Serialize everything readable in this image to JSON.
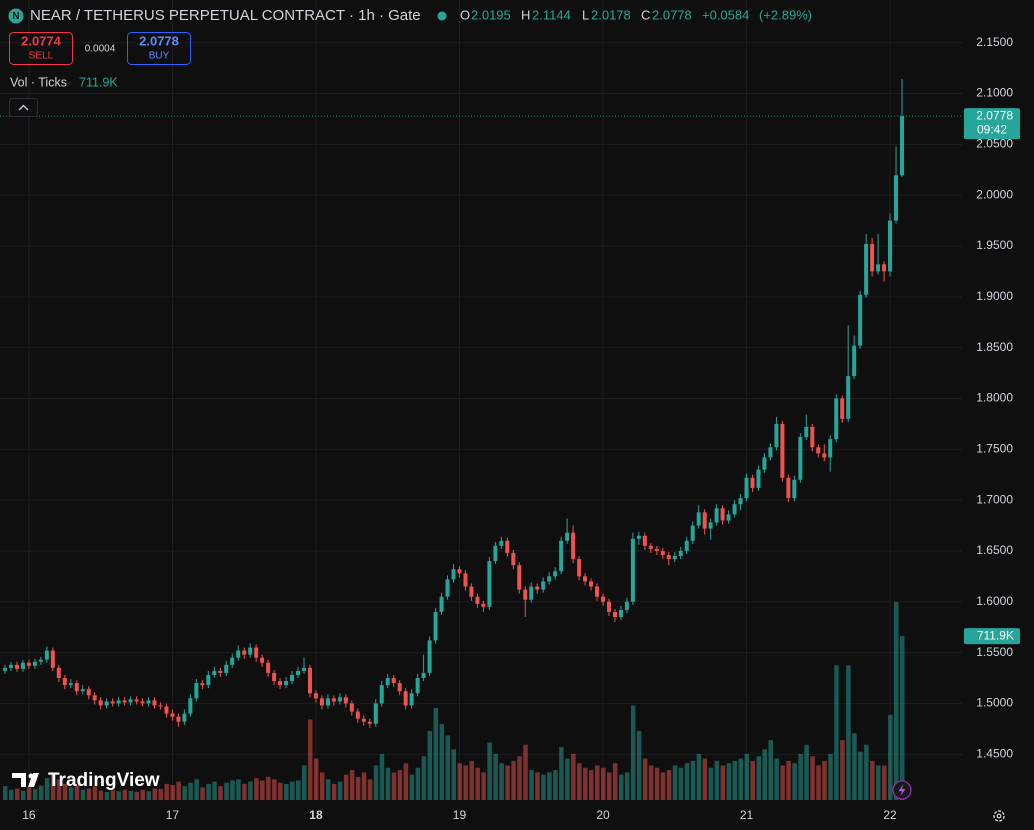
{
  "chart_data": {
    "type": "candlestick",
    "title": "NEAR / TETHERUS PERPETUAL CONTRACT · 1h · Gate",
    "ohlc_labels": [
      "O",
      "H",
      "L",
      "C"
    ],
    "ohlc_values": [
      2.0195,
      2.1144,
      2.0178,
      2.0778
    ],
    "change": {
      "value": 0.0584,
      "label": "+0.0584"
    },
    "change_pct": {
      "value": 2.89,
      "label": "(+2.89%)"
    },
    "sell": {
      "price": 2.0774,
      "label": "SELL"
    },
    "buy": {
      "price": 2.0778,
      "label": "BUY"
    },
    "spread": 0.0004,
    "countdown": "09:42",
    "brand": "TradingView",
    "up_color": "#26a69a",
    "down_color": "#ef5350",
    "grid": true,
    "ylim": [
      1.405,
      2.192
    ],
    "yticks": [
      {
        "value": 1.45,
        "label": "1.4500"
      },
      {
        "value": 1.5,
        "label": "1.5000"
      },
      {
        "value": 1.55,
        "label": "1.5500"
      },
      {
        "value": 1.6,
        "label": "1.6000"
      },
      {
        "value": 1.65,
        "label": "1.6500"
      },
      {
        "value": 1.7,
        "label": "1.7000"
      },
      {
        "value": 1.75,
        "label": "1.7500"
      },
      {
        "value": 1.8,
        "label": "1.8000"
      },
      {
        "value": 1.85,
        "label": "1.8500"
      },
      {
        "value": 1.9,
        "label": "1.9000"
      },
      {
        "value": 1.95,
        "label": "1.9500"
      },
      {
        "value": 2.0,
        "label": "2.0000"
      },
      {
        "value": 2.05,
        "label": "2.0500"
      },
      {
        "value": 2.1,
        "label": "2.1000"
      },
      {
        "value": 2.15,
        "label": "2.1500"
      }
    ],
    "categories": [
      null,
      null,
      null,
      null,
      "16",
      null,
      null,
      null,
      null,
      null,
      null,
      null,
      null,
      null,
      null,
      null,
      null,
      null,
      null,
      null,
      null,
      null,
      null,
      null,
      null,
      null,
      null,
      null,
      "17",
      null,
      null,
      null,
      null,
      null,
      null,
      null,
      null,
      null,
      null,
      null,
      null,
      null,
      null,
      null,
      null,
      null,
      null,
      null,
      null,
      null,
      null,
      null,
      "18",
      null,
      null,
      null,
      null,
      null,
      null,
      null,
      null,
      null,
      null,
      null,
      null,
      null,
      null,
      null,
      null,
      null,
      null,
      null,
      null,
      null,
      null,
      null,
      "19",
      null,
      null,
      null,
      null,
      null,
      null,
      null,
      null,
      null,
      null,
      null,
      null,
      null,
      null,
      null,
      null,
      null,
      null,
      null,
      null,
      null,
      null,
      null,
      "20",
      null,
      null,
      null,
      null,
      null,
      null,
      null,
      null,
      null,
      null,
      null,
      null,
      null,
      null,
      null,
      null,
      null,
      null,
      null,
      null,
      null,
      null,
      null,
      "21",
      null,
      null,
      null,
      null,
      null,
      null,
      null,
      null,
      null,
      null,
      null,
      null,
      null,
      null,
      null,
      null,
      null,
      null,
      null,
      null,
      null,
      null,
      null,
      "22",
      null,
      null
    ],
    "candles": [
      [
        1.532,
        1.538,
        1.529,
        1.535
      ],
      [
        1.535,
        1.541,
        1.532,
        1.538
      ],
      [
        1.538,
        1.541,
        1.531,
        1.534
      ],
      [
        1.534,
        1.543,
        1.531,
        1.54
      ],
      [
        1.54,
        1.543,
        1.534,
        1.537
      ],
      [
        1.537,
        1.544,
        1.534,
        1.541
      ],
      [
        1.541,
        1.546,
        1.538,
        1.543
      ],
      [
        1.543,
        1.556,
        1.54,
        1.552
      ],
      [
        1.552,
        1.555,
        1.532,
        1.535
      ],
      [
        1.535,
        1.538,
        1.521,
        1.525
      ],
      [
        1.525,
        1.528,
        1.514,
        1.518
      ],
      [
        1.518,
        1.524,
        1.515,
        1.52
      ],
      [
        1.52,
        1.523,
        1.508,
        1.512
      ],
      [
        1.512,
        1.518,
        1.509,
        1.514
      ],
      [
        1.514,
        1.517,
        1.504,
        1.508
      ],
      [
        1.508,
        1.511,
        1.499,
        1.503
      ],
      [
        1.503,
        1.506,
        1.494,
        1.498
      ],
      [
        1.498,
        1.505,
        1.495,
        1.502
      ],
      [
        1.502,
        1.505,
        1.497,
        1.5
      ],
      [
        1.5,
        1.506,
        1.497,
        1.503
      ],
      [
        1.503,
        1.506,
        1.498,
        1.501
      ],
      [
        1.501,
        1.507,
        1.498,
        1.504
      ],
      [
        1.504,
        1.507,
        1.499,
        1.502
      ],
      [
        1.502,
        1.505,
        1.497,
        1.5
      ],
      [
        1.5,
        1.506,
        1.497,
        1.503
      ],
      [
        1.503,
        1.506,
        1.495,
        1.498
      ],
      [
        1.498,
        1.501,
        1.494,
        1.497
      ],
      [
        1.497,
        1.5,
        1.486,
        1.49
      ],
      [
        1.49,
        1.494,
        1.483,
        1.487
      ],
      [
        1.487,
        1.49,
        1.477,
        1.482
      ],
      [
        1.482,
        1.494,
        1.479,
        1.49
      ],
      [
        1.49,
        1.509,
        1.487,
        1.505
      ],
      [
        1.505,
        1.524,
        1.502,
        1.52
      ],
      [
        1.52,
        1.523,
        1.514,
        1.518
      ],
      [
        1.518,
        1.532,
        1.515,
        1.528
      ],
      [
        1.528,
        1.536,
        1.525,
        1.532
      ],
      [
        1.532,
        1.535,
        1.526,
        1.53
      ],
      [
        1.53,
        1.542,
        1.527,
        1.538
      ],
      [
        1.538,
        1.549,
        1.535,
        1.545
      ],
      [
        1.545,
        1.557,
        1.542,
        1.552
      ],
      [
        1.552,
        1.555,
        1.544,
        1.548
      ],
      [
        1.548,
        1.559,
        1.545,
        1.555
      ],
      [
        1.555,
        1.558,
        1.541,
        1.545
      ],
      [
        1.545,
        1.548,
        1.536,
        1.54
      ],
      [
        1.54,
        1.543,
        1.526,
        1.53
      ],
      [
        1.53,
        1.533,
        1.518,
        1.522
      ],
      [
        1.522,
        1.525,
        1.514,
        1.518
      ],
      [
        1.518,
        1.526,
        1.515,
        1.522
      ],
      [
        1.522,
        1.532,
        1.519,
        1.528
      ],
      [
        1.528,
        1.536,
        1.525,
        1.532
      ],
      [
        1.532,
        1.545,
        1.529,
        1.535
      ],
      [
        1.535,
        1.538,
        1.506,
        1.51
      ],
      [
        1.51,
        1.513,
        1.501,
        1.505
      ],
      [
        1.505,
        1.508,
        1.494,
        1.498
      ],
      [
        1.498,
        1.509,
        1.495,
        1.505
      ],
      [
        1.505,
        1.508,
        1.498,
        1.502
      ],
      [
        1.502,
        1.51,
        1.499,
        1.506
      ],
      [
        1.506,
        1.509,
        1.496,
        1.5
      ],
      [
        1.5,
        1.503,
        1.488,
        1.492
      ],
      [
        1.492,
        1.495,
        1.481,
        1.485
      ],
      [
        1.485,
        1.488,
        1.478,
        1.482
      ],
      [
        1.482,
        1.485,
        1.476,
        1.48
      ],
      [
        1.48,
        1.504,
        1.477,
        1.5
      ],
      [
        1.5,
        1.522,
        1.497,
        1.518
      ],
      [
        1.518,
        1.529,
        1.515,
        1.525
      ],
      [
        1.525,
        1.528,
        1.516,
        1.52
      ],
      [
        1.52,
        1.523,
        1.508,
        1.512
      ],
      [
        1.512,
        1.515,
        1.494,
        1.498
      ],
      [
        1.498,
        1.514,
        1.495,
        1.51
      ],
      [
        1.51,
        1.529,
        1.507,
        1.525
      ],
      [
        1.525,
        1.548,
        1.522,
        1.53
      ],
      [
        1.53,
        1.566,
        1.527,
        1.562
      ],
      [
        1.562,
        1.594,
        1.559,
        1.59
      ],
      [
        1.59,
        1.609,
        1.587,
        1.605
      ],
      [
        1.605,
        1.626,
        1.602,
        1.622
      ],
      [
        1.622,
        1.637,
        1.619,
        1.632
      ],
      [
        1.632,
        1.635,
        1.624,
        1.628
      ],
      [
        1.628,
        1.631,
        1.611,
        1.615
      ],
      [
        1.615,
        1.618,
        1.601,
        1.605
      ],
      [
        1.605,
        1.608,
        1.594,
        1.598
      ],
      [
        1.598,
        1.601,
        1.59,
        1.595
      ],
      [
        1.595,
        1.644,
        1.592,
        1.64
      ],
      [
        1.64,
        1.659,
        1.637,
        1.655
      ],
      [
        1.655,
        1.664,
        1.652,
        1.66
      ],
      [
        1.66,
        1.663,
        1.644,
        1.648
      ],
      [
        1.648,
        1.651,
        1.632,
        1.636
      ],
      [
        1.636,
        1.639,
        1.608,
        1.612
      ],
      [
        1.612,
        1.615,
        1.585,
        1.602
      ],
      [
        1.602,
        1.619,
        1.599,
        1.615
      ],
      [
        1.615,
        1.618,
        1.608,
        1.612
      ],
      [
        1.612,
        1.624,
        1.609,
        1.62
      ],
      [
        1.62,
        1.629,
        1.617,
        1.625
      ],
      [
        1.625,
        1.634,
        1.622,
        1.63
      ],
      [
        1.63,
        1.664,
        1.627,
        1.66
      ],
      [
        1.66,
        1.682,
        1.657,
        1.668
      ],
      [
        1.668,
        1.675,
        1.638,
        1.642
      ],
      [
        1.642,
        1.645,
        1.621,
        1.625
      ],
      [
        1.625,
        1.628,
        1.616,
        1.62
      ],
      [
        1.62,
        1.623,
        1.611,
        1.615
      ],
      [
        1.615,
        1.618,
        1.601,
        1.605
      ],
      [
        1.605,
        1.608,
        1.596,
        1.6
      ],
      [
        1.6,
        1.603,
        1.586,
        1.59
      ],
      [
        1.59,
        1.593,
        1.58,
        1.585
      ],
      [
        1.585,
        1.596,
        1.582,
        1.592
      ],
      [
        1.592,
        1.604,
        1.589,
        1.6
      ],
      [
        1.6,
        1.668,
        1.597,
        1.662
      ],
      [
        1.662,
        1.669,
        1.656,
        1.665
      ],
      [
        1.665,
        1.668,
        1.651,
        1.655
      ],
      [
        1.655,
        1.658,
        1.648,
        1.652
      ],
      [
        1.652,
        1.655,
        1.646,
        1.65
      ],
      [
        1.65,
        1.653,
        1.642,
        1.646
      ],
      [
        1.646,
        1.649,
        1.636,
        1.642
      ],
      [
        1.642,
        1.649,
        1.639,
        1.645
      ],
      [
        1.645,
        1.654,
        1.642,
        1.65
      ],
      [
        1.65,
        1.664,
        1.647,
        1.66
      ],
      [
        1.66,
        1.679,
        1.657,
        1.675
      ],
      [
        1.675,
        1.695,
        1.672,
        1.688
      ],
      [
        1.688,
        1.691,
        1.666,
        1.672
      ],
      [
        1.672,
        1.682,
        1.661,
        1.678
      ],
      [
        1.678,
        1.696,
        1.675,
        1.692
      ],
      [
        1.692,
        1.695,
        1.676,
        1.68
      ],
      [
        1.68,
        1.69,
        1.677,
        1.686
      ],
      [
        1.686,
        1.7,
        1.683,
        1.696
      ],
      [
        1.696,
        1.706,
        1.69,
        1.702
      ],
      [
        1.702,
        1.726,
        1.699,
        1.722
      ],
      [
        1.722,
        1.725,
        1.708,
        1.712
      ],
      [
        1.712,
        1.734,
        1.709,
        1.73
      ],
      [
        1.73,
        1.746,
        1.727,
        1.742
      ],
      [
        1.742,
        1.756,
        1.739,
        1.752
      ],
      [
        1.752,
        1.782,
        1.749,
        1.775
      ],
      [
        1.775,
        1.778,
        1.718,
        1.722
      ],
      [
        1.722,
        1.725,
        1.698,
        1.702
      ],
      [
        1.702,
        1.724,
        1.699,
        1.72
      ],
      [
        1.72,
        1.766,
        1.717,
        1.762
      ],
      [
        1.762,
        1.784,
        1.759,
        1.772
      ],
      [
        1.772,
        1.775,
        1.748,
        1.752
      ],
      [
        1.752,
        1.755,
        1.742,
        1.746
      ],
      [
        1.746,
        1.755,
        1.738,
        1.742
      ],
      [
        1.742,
        1.764,
        1.728,
        1.76
      ],
      [
        1.76,
        1.804,
        1.757,
        1.8
      ],
      [
        1.8,
        1.803,
        1.776,
        1.78
      ],
      [
        1.78,
        1.872,
        1.777,
        1.822
      ],
      [
        1.822,
        1.862,
        1.819,
        1.852
      ],
      [
        1.852,
        1.906,
        1.849,
        1.902
      ],
      [
        1.902,
        1.962,
        1.899,
        1.952
      ],
      [
        1.952,
        1.958,
        1.92,
        1.925
      ],
      [
        1.925,
        1.962,
        1.922,
        1.932
      ],
      [
        1.932,
        1.935,
        1.915,
        1.925
      ],
      [
        1.925,
        1.982,
        1.92,
        1.975
      ],
      [
        1.975,
        2.048,
        1.972,
        2.0195
      ],
      [
        2.0195,
        2.1144,
        2.0178,
        2.0778
      ]
    ],
    "volume": {
      "name": "Vol · Ticks",
      "last_label": "711.9K",
      "values": [
        60000,
        45000,
        50000,
        40000,
        55000,
        48000,
        62000,
        95000,
        120000,
        90000,
        70000,
        55000,
        65000,
        45000,
        50000,
        60000,
        40000,
        35000,
        42000,
        38000,
        45000,
        40000,
        36000,
        44000,
        38000,
        50000,
        48000,
        70000,
        65000,
        80000,
        60000,
        75000,
        90000,
        55000,
        70000,
        80000,
        60000,
        75000,
        85000,
        90000,
        70000,
        80000,
        95000,
        85000,
        100000,
        90000,
        75000,
        70000,
        80000,
        85000,
        150000,
        350000,
        180000,
        120000,
        90000,
        70000,
        80000,
        110000,
        130000,
        100000,
        120000,
        90000,
        150000,
        200000,
        140000,
        120000,
        130000,
        160000,
        110000,
        140000,
        190000,
        300000,
        400000,
        330000,
        280000,
        220000,
        160000,
        150000,
        170000,
        140000,
        120000,
        250000,
        200000,
        160000,
        150000,
        170000,
        190000,
        240000,
        130000,
        120000,
        110000,
        120000,
        130000,
        230000,
        180000,
        200000,
        160000,
        140000,
        130000,
        150000,
        140000,
        120000,
        160000,
        110000,
        120000,
        410000,
        300000,
        180000,
        150000,
        140000,
        120000,
        130000,
        150000,
        140000,
        160000,
        170000,
        200000,
        180000,
        140000,
        170000,
        150000,
        160000,
        170000,
        180000,
        200000,
        170000,
        190000,
        220000,
        260000,
        180000,
        150000,
        170000,
        160000,
        200000,
        240000,
        190000,
        150000,
        170000,
        200000,
        585000,
        260000,
        585000,
        290000,
        210000,
        240000,
        170000,
        150000,
        150000,
        370000,
        860000,
        711900
      ]
    }
  }
}
